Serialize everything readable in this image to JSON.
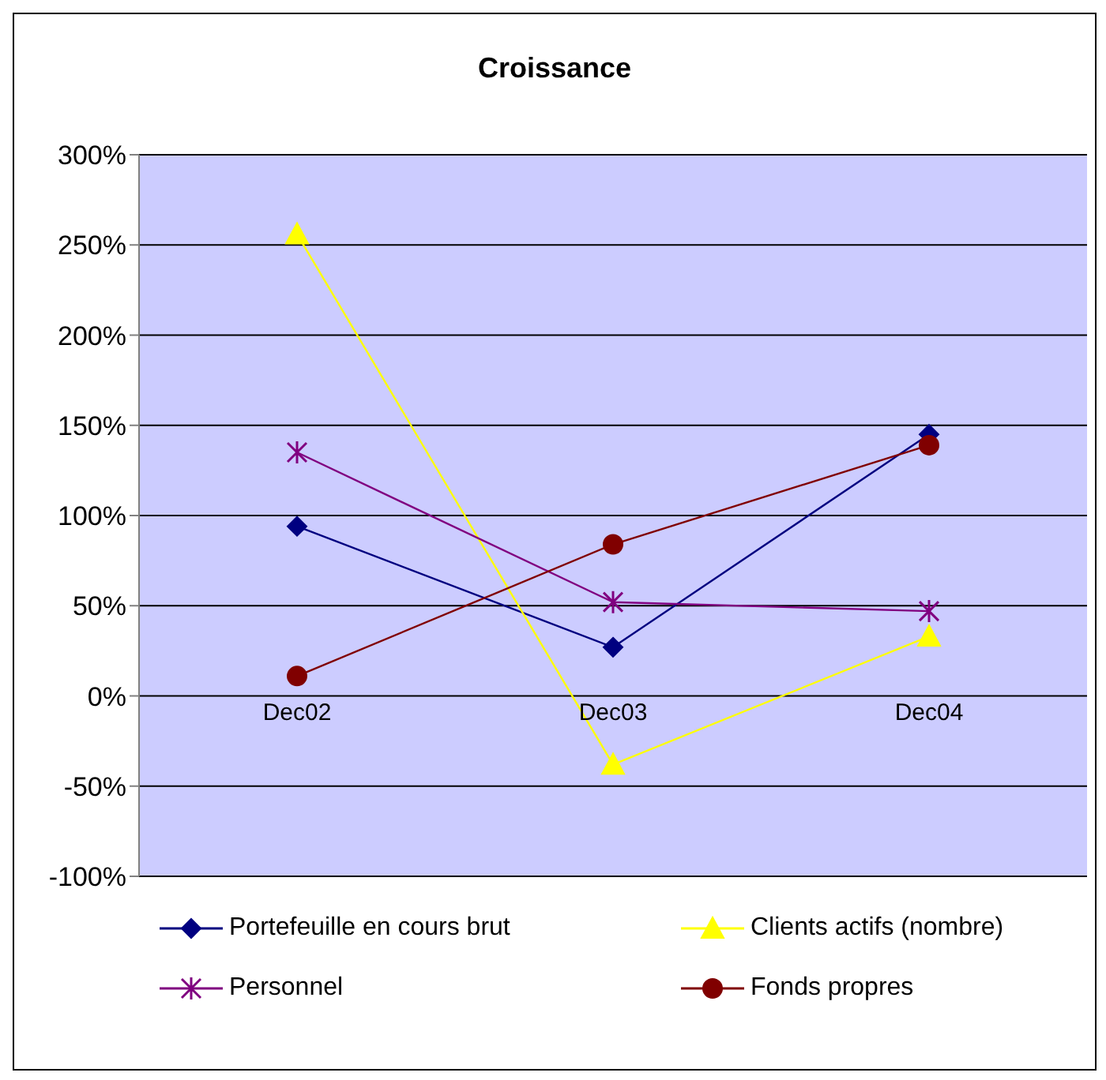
{
  "chart_data": {
    "type": "line",
    "title": "Croissance",
    "categories": [
      "Dec02",
      "Dec03",
      "Dec04"
    ],
    "series": [
      {
        "name": "Portefeuille en cours brut",
        "color": "#000080",
        "marker": "diamond",
        "values": [
          94,
          27,
          145
        ]
      },
      {
        "name": "Clients actifs (nombre)",
        "color": "#ffff00",
        "marker": "triangle",
        "values": [
          256,
          -38,
          33
        ]
      },
      {
        "name": "Personnel",
        "color": "#800080",
        "marker": "cross",
        "values": [
          135,
          52,
          47
        ]
      },
      {
        "name": "Fonds propres",
        "color": "#800000",
        "marker": "circle",
        "values": [
          11,
          84,
          139
        ]
      }
    ],
    "ylim": [
      -100,
      300
    ],
    "yticks": [
      {
        "value": -100,
        "label": "-100%"
      },
      {
        "value": -50,
        "label": "-50%"
      },
      {
        "value": 0,
        "label": "0%"
      },
      {
        "value": 50,
        "label": "50%"
      },
      {
        "value": 100,
        "label": "100%"
      },
      {
        "value": 150,
        "label": "150%"
      },
      {
        "value": 200,
        "label": "200%"
      },
      {
        "value": 250,
        "label": "250%"
      },
      {
        "value": 300,
        "label": "300%"
      }
    ],
    "grid": "y",
    "legend": "bottom"
  }
}
